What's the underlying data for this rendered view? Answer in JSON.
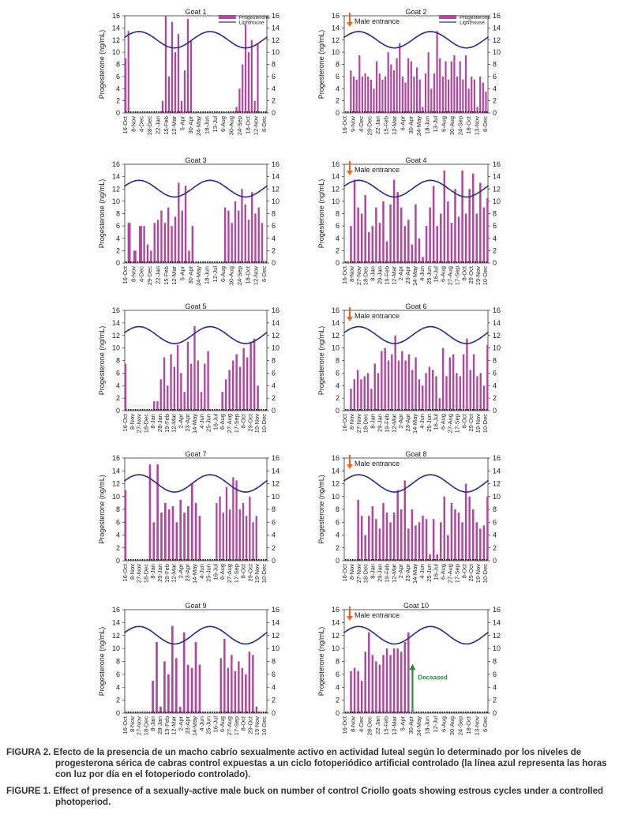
{
  "chart_data": [
    {
      "type": "bar",
      "title": "Goat 1",
      "ylabel": "Progesterone (ng/mL)",
      "ylim": [
        0,
        16
      ],
      "legend": [
        "Progesterone",
        "Lighthouse"
      ],
      "male_entrance": false,
      "xticks": [
        "16-Oct",
        "8-Nov",
        "4-Dec",
        "28-Dec",
        "22-Jan",
        "15-Feb",
        "12-Mar",
        "5-Apr",
        "30-Apr",
        "24-May",
        "18-Jun",
        "13-Jul",
        "6-Aug",
        "30-Aug",
        "24-Sep",
        "18-Oct",
        "12-Nov",
        "6-Dec"
      ],
      "bursts": [
        {
          "s": 0.0,
          "e": 0.02,
          "v": [
            9,
            13.5
          ]
        },
        {
          "s": 0.26,
          "e": 0.46,
          "v": [
            2,
            16,
            6,
            15,
            10,
            13,
            2,
            7,
            15.5,
            12
          ]
        },
        {
          "s": 0.78,
          "e": 0.93,
          "v": [
            1,
            4,
            8,
            14.5,
            10,
            12,
            2,
            11.5
          ]
        }
      ]
    },
    {
      "type": "bar",
      "title": "Goat 2",
      "ylabel": "Progesterone (ng/mL)",
      "ylim": [
        0,
        16
      ],
      "legend": [
        "Progesterone",
        "Lighthouse"
      ],
      "male_entrance": true,
      "xticks": [
        "16-Oct",
        "9-Nov",
        "4-Dec",
        "29-Dec",
        "22-Jan",
        "15-Feb",
        "12-Mar",
        "6-Apr",
        "30-Apr",
        "24-May",
        "18-Jun",
        "13-Jul",
        "6-Aug",
        "30-Aug",
        "24-Sep",
        "18-Oct",
        "13-Nov",
        "6-Dec"
      ],
      "bursts": [
        {
          "s": 0.04,
          "e": 0.98,
          "v": [
            7,
            6,
            5.5,
            9.5,
            6,
            6.5,
            6,
            5.5,
            4,
            8.5,
            6.5,
            5.5,
            6,
            10,
            8,
            7,
            9,
            11.5,
            6,
            5,
            9,
            8.5,
            6,
            7.5,
            5.5,
            1,
            6.5,
            10,
            4,
            6.5,
            13.5,
            9,
            6,
            8.5,
            5.5,
            8.5,
            9.5,
            6,
            8.5,
            5.5,
            9.5,
            4,
            6,
            5.5,
            1,
            6,
            5,
            3.5
          ]
        }
      ]
    },
    {
      "type": "bar",
      "title": "Goat 3",
      "ylabel": "Progesterone (ng/mL)",
      "ylim": [
        0,
        16
      ],
      "legend": [],
      "male_entrance": false,
      "xticks": [
        "16-Oct",
        "8-Nov",
        "4-Dec",
        "29-Dec",
        "22-Jan",
        "15-Feb",
        "12-Mar",
        "5-Apr",
        "30-Apr",
        "24-May",
        "18-Jun",
        "12-Jul",
        "6-Aug",
        "30-Aug",
        "24-Sep",
        "18-Oct",
        "12-Nov",
        "6-Dec"
      ],
      "bursts": [
        {
          "s": 0.02,
          "e": 0.1,
          "v": [
            6.5,
            2,
            6
          ]
        },
        {
          "s": 0.13,
          "e": 0.47,
          "v": [
            6,
            3,
            2,
            6.5,
            7,
            8.5,
            6.5,
            9,
            6,
            7.5,
            13,
            8.5,
            12.5,
            2,
            6
          ]
        },
        {
          "s": 0.7,
          "e": 0.96,
          "v": [
            9,
            8.5,
            6.5,
            10,
            8.5,
            12,
            9.5,
            7,
            11.5,
            8,
            9,
            6.5
          ]
        }
      ]
    },
    {
      "type": "bar",
      "title": "Goat 4",
      "ylabel": "Progesterone (ng/mL)",
      "ylim": [
        0,
        16
      ],
      "legend": [],
      "male_entrance": true,
      "xticks": [
        "16-Oct",
        "8-Nov",
        "27-Nov",
        "18-Dec",
        "8-Jan",
        "29-Jan",
        "19-Feb",
        "12-Mar",
        "2-Apr",
        "23-Apr",
        "14-May",
        "4-Jun",
        "25-Jun",
        "16-Jul",
        "6-Aug",
        "27-Aug",
        "17-Sep",
        "8-Oct",
        "29-Oct",
        "19-Nov",
        "10-Dec"
      ],
      "bursts": [
        {
          "s": 0.04,
          "e": 0.99,
          "v": [
            6,
            13.5,
            9,
            8,
            11,
            5,
            6,
            9,
            6.5,
            10,
            3.5,
            9.5,
            13.5,
            11.5,
            9,
            6,
            7,
            3,
            9.5,
            4,
            1,
            6,
            9,
            12.5,
            6,
            8,
            15,
            10,
            6.5,
            12,
            7.5,
            15,
            8,
            12,
            14.5,
            8,
            13,
            9,
            10.5
          ]
        }
      ]
    },
    {
      "type": "bar",
      "title": "Goat 5",
      "ylabel": "Progesterone (ng/mL)",
      "ylim": [
        0,
        16
      ],
      "legend": [],
      "male_entrance": false,
      "xticks": [
        "16-Oct",
        "8-Nov",
        "27-Nov",
        "18-Dec",
        "8-Jan",
        "28-Jan",
        "19-Feb",
        "12-Mar",
        "2-Apr",
        "23-Apr",
        "14-May",
        "4-Jun",
        "25-Jun",
        "16-Jul",
        "6-Aug",
        "27-Aug",
        "17-Sep",
        "8-Oct",
        "29-Oct",
        "19-Nov",
        "10-Dec"
      ],
      "bursts": [
        {
          "s": 0.0,
          "e": 0.015,
          "v": [
            7.5
          ]
        },
        {
          "s": 0.2,
          "e": 0.58,
          "v": [
            1.5,
            1.5,
            5,
            8.5,
            4,
            9,
            7,
            10.5,
            6,
            3,
            11,
            7.5,
            13.5,
            8,
            3,
            7.5,
            9.5
          ]
        },
        {
          "s": 0.68,
          "e": 0.93,
          "v": [
            3,
            5,
            6.5,
            8,
            9,
            7,
            10,
            8.5,
            11,
            11.5,
            4
          ]
        }
      ]
    },
    {
      "type": "bar",
      "title": "Goat 6",
      "ylabel": "Progesterone (ng/mL)",
      "ylim": [
        0,
        16
      ],
      "legend": [],
      "male_entrance": true,
      "xticks": [
        "16-Oct",
        "8-Nov",
        "27-Nov",
        "18-Dec",
        "8-Jan",
        "29-Jan",
        "19-Feb",
        "12-Mar",
        "2-Apr",
        "23-Apr",
        "14-May",
        "4-Jun",
        "25-Jun",
        "16-Jul",
        "6-Aug",
        "27-Aug",
        "17-Sep",
        "8-Oct",
        "29-Oct",
        "19-Nov",
        "10-Dec"
      ],
      "bursts": [
        {
          "s": 0.04,
          "e": 0.99,
          "v": [
            3.5,
            5,
            6.5,
            5,
            5.5,
            6,
            3.5,
            7.5,
            6,
            9.5,
            10,
            8,
            9,
            12,
            8,
            9.5,
            8,
            9,
            6.5,
            8.5,
            5,
            4,
            6,
            7,
            6.5,
            5.5,
            2,
            10,
            5.5,
            8.5,
            9,
            6,
            5.5,
            9,
            11.5,
            6.5,
            9,
            5.5,
            6,
            4,
            10.5
          ]
        }
      ]
    },
    {
      "type": "bar",
      "title": "Goat 7",
      "ylabel": "Progesterone (ng/mL)",
      "ylim": [
        0,
        16
      ],
      "legend": [],
      "male_entrance": false,
      "xticks": [
        "16-Oct",
        "8-Nov",
        "27-Nov",
        "18-Dec",
        "8-Jan",
        "29-Jan",
        "19-Feb",
        "12-Mar",
        "2-Apr",
        "23-Apr",
        "14-May",
        "4-Jun",
        "25-Jun",
        "16-Jul",
        "6-Aug",
        "27-Aug",
        "17-Sep",
        "8-Oct",
        "29-Oct",
        "19-Nov",
        "10-Dec"
      ],
      "bursts": [
        {
          "s": 0.0,
          "e": 0.02,
          "v": [
            11
          ]
        },
        {
          "s": 0.17,
          "e": 0.52,
          "v": [
            15,
            6,
            15,
            7.5,
            9,
            8,
            8.5,
            6,
            9.5,
            7.5,
            8.5,
            12,
            9,
            7
          ]
        },
        {
          "s": 0.64,
          "e": 0.92,
          "v": [
            9,
            10,
            7.5,
            11.5,
            8,
            13,
            12.5,
            8,
            9,
            7,
            10,
            6,
            7
          ]
        }
      ]
    },
    {
      "type": "bar",
      "title": "Goat 8",
      "ylabel": "Progesterone (ng/mL)",
      "ylim": [
        0,
        16
      ],
      "legend": [],
      "male_entrance": true,
      "xticks": [
        "16-Oct",
        "8-Nov",
        "27-Nov",
        "18-Dec",
        "8-Jan",
        "29-Jan",
        "19-Feb",
        "12-Mar",
        "2-Apr",
        "23-Apr",
        "14-May",
        "4-Jun",
        "25-Jun",
        "16-Jul",
        "6-Aug",
        "27-Aug",
        "17-Sep",
        "8-Oct",
        "29-Oct",
        "19-Nov",
        "10-Dec"
      ],
      "bursts": [
        {
          "s": 0.09,
          "e": 0.99,
          "v": [
            9.5,
            7,
            4,
            7,
            8.5,
            6.5,
            5,
            9,
            7.5,
            6,
            7.5,
            11,
            8,
            12.5,
            5,
            8,
            5.5,
            6,
            7,
            6.5,
            1,
            6.5,
            1,
            6,
            10,
            4,
            9,
            8,
            7.5,
            6,
            12,
            10,
            8,
            6,
            5,
            5.5,
            10
          ]
        }
      ]
    },
    {
      "type": "bar",
      "title": "Goat 9",
      "ylabel": "Progesterone (ng/mL)",
      "ylim": [
        0,
        16
      ],
      "legend": [],
      "male_entrance": false,
      "xticks": [
        "16-Oct",
        "8-Nov",
        "27-Nov",
        "18-Dec",
        "8-Jan",
        "28-Jan",
        "19-Feb",
        "12-Mar",
        "2-Apr",
        "23-Apr",
        "14-May",
        "4-Jun",
        "25-Jun",
        "16-Jul",
        "6-Aug",
        "27-Aug",
        "17-Sep",
        "8-Oct",
        "29-Oct",
        "19-Nov",
        "10-Dec"
      ],
      "bursts": [
        {
          "s": 0.19,
          "e": 0.52,
          "v": [
            5,
            11,
            1,
            8,
            6,
            13.5,
            8.5,
            1,
            12.5,
            7.5,
            7,
            11,
            7.5
          ]
        },
        {
          "s": 0.67,
          "e": 0.92,
          "v": [
            8.5,
            11.5,
            7,
            9,
            6.5,
            8,
            7,
            6,
            9.5,
            9,
            1
          ]
        }
      ]
    },
    {
      "type": "bar",
      "title": "Goat 10",
      "ylabel": "Progesterone (ng/mL)",
      "ylim": [
        0,
        16
      ],
      "legend": [],
      "male_entrance": true,
      "deceased": true,
      "xticks": [
        "16-Oct",
        "8-Nov",
        "4-Dec",
        "28-Dec",
        "22-Jan",
        "15-Feb",
        "12-Mar",
        "5-Apr",
        "30-Apr",
        "24-May",
        "18-Jun",
        "12-Jul",
        "6-Aug",
        "30-Aug",
        "24-Sep",
        "18-Oct",
        "13-Nov",
        "6-Dec"
      ],
      "bursts": [
        {
          "s": 0.04,
          "e": 0.44,
          "v": [
            6.5,
            7,
            6.5,
            5,
            9.5,
            12.5,
            9,
            8,
            7.5,
            9,
            10,
            9,
            10,
            10,
            9.5,
            11,
            12.5
          ]
        }
      ]
    }
  ],
  "annotations": {
    "male_entrance": "Male entrance",
    "deceased": "Deceased"
  },
  "colors": {
    "bar": "#b0489f",
    "line": "#2f2f86",
    "arrow": "#e8672b",
    "deceased": "#2e8b3e"
  },
  "captions": {
    "es_label": "FIGURA 2.",
    "es_text": "Efecto de la presencia de un macho cabrío sexualmente activo en actividad luteal según lo determinado por los niveles de progesterona sérica de cabras control expuestas a un ciclo fotoperiódico artificial controlado (la línea azul representa las horas con luz por día en el fotoperiodo controlado).",
    "en_label": "FIGURE 1.",
    "en_text_pre": "Effect of presence of a sexually-active male buck on number of",
    "en_bold": "control",
    "en_text_post": "Criollo goats showing estrous cycles under a controlled photoperiod."
  }
}
